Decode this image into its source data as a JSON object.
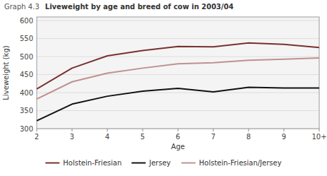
{
  "chart_data": {
    "type": "line",
    "title": "Liveweight by age and breed of cow in 2003/04",
    "annotations": [
      "Graph 4.3"
    ],
    "x_label": "Age",
    "y_label": "Liveweight (kg)",
    "x": [
      2,
      3,
      4,
      5,
      6,
      7,
      8,
      9,
      10
    ],
    "xlim": [
      2,
      10
    ],
    "xticks": [
      2,
      3,
      4,
      5,
      6,
      7,
      8,
      9,
      {
        "value": 10,
        "label": "10+"
      }
    ],
    "ylim": [
      300,
      610
    ],
    "yticks": [
      300,
      350,
      400,
      450,
      500,
      550,
      600
    ],
    "grid": true,
    "legend": "bottom",
    "series": [
      {
        "name": "Holstein-Friesian",
        "color": "#7a3030",
        "values": [
          410,
          468,
          502,
          517,
          528,
          527,
          538,
          534,
          525
        ]
      },
      {
        "name": "Jersey",
        "color": "#111111",
        "values": [
          322,
          368,
          390,
          404,
          412,
          402,
          415,
          413,
          413
        ]
      },
      {
        "name": "Holstein-Friesian/Jersey",
        "color": "#c09090",
        "values": [
          382,
          430,
          454,
          468,
          480,
          483,
          490,
          493,
          496
        ]
      }
    ]
  }
}
